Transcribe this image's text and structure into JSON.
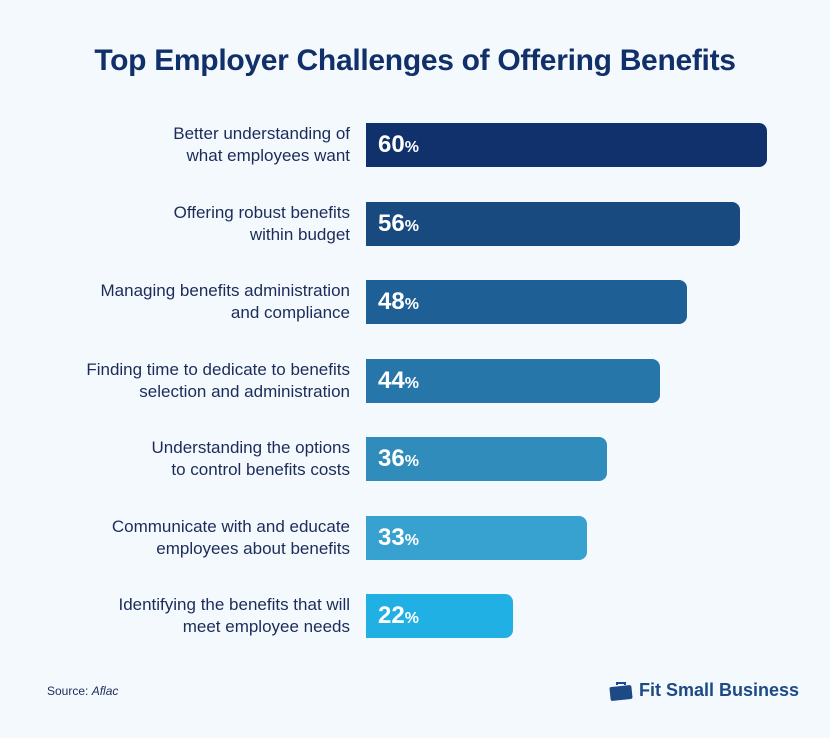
{
  "chart_data": {
    "type": "bar",
    "orientation": "horizontal",
    "title": "Top Employer Challenges of Offering Benefits",
    "categories": [
      "Better understanding of\nwhat employees want",
      "Offering robust benefits\nwithin budget",
      "Managing benefits administration\nand compliance",
      "Finding time to dedicate to benefits\nselection and administration",
      "Understanding the options\nto control benefits costs",
      "Communicate with and educate\nemployees about benefits",
      "Identifying the benefits that will\nmeet employee needs"
    ],
    "values": [
      60,
      56,
      48,
      44,
      36,
      33,
      22
    ],
    "value_suffix": "%",
    "colors": [
      "#10316b",
      "#18497f",
      "#1e5f95",
      "#2776aa",
      "#2f8cbb",
      "#37a2d0",
      "#20b0e3"
    ],
    "xlim": [
      0,
      60
    ],
    "grid": false
  },
  "footer": {
    "source_label": "Source: ",
    "source_name": "Aflac",
    "brand": "Fit Small Business",
    "brand_icon": "briefcase-icon",
    "brand_color": "#1d4a86"
  }
}
